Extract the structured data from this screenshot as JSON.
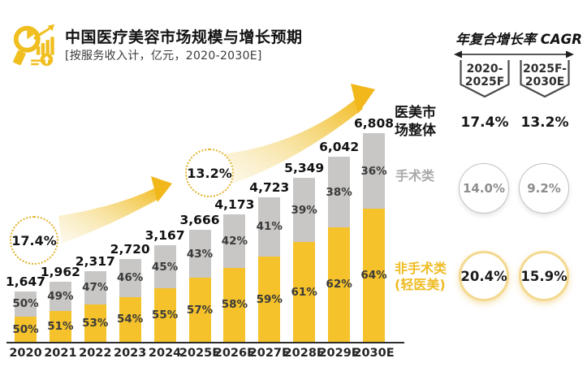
{
  "header": {
    "title": "中国医疗美容市场规模与增长预期",
    "subtitle": "[按服务收入计，亿元，2020-2030E]",
    "icon": "market-analysis-icon"
  },
  "colors": {
    "brand_gold": "#f0be1e",
    "bar_yellow": "#f5c22b",
    "bar_gray": "#c8c7c5",
    "text_dark": "#161616",
    "text_gray": "#a9a9a9"
  },
  "chart_data": {
    "type": "bar",
    "stacked": true,
    "title": "中国医疗美容市场规模与增长预期",
    "unit": "亿元",
    "categories": [
      "2020",
      "2021",
      "2022",
      "2023",
      "2024",
      "2025F",
      "2026E",
      "2027E",
      "2028E",
      "2029E",
      "2030E"
    ],
    "totals": [
      1647,
      1962,
      2317,
      2720,
      3167,
      3666,
      4173,
      4723,
      5349,
      6042,
      6808
    ],
    "totals_fmt": [
      "1,647",
      "1,962",
      "2,317",
      "2,720",
      "3,167",
      "3,666",
      "4,173",
      "4,723",
      "5,349",
      "6,042",
      "6,808"
    ],
    "series": [
      {
        "name": "非手术类(轻医美)",
        "color": "#f5c22b",
        "share_pct": [
          50,
          51,
          53,
          54,
          55,
          57,
          58,
          59,
          61,
          62,
          64
        ]
      },
      {
        "name": "手术类",
        "color": "#c8c7c5",
        "share_pct": [
          50,
          49,
          47,
          46,
          45,
          43,
          42,
          41,
          39,
          38,
          36
        ]
      }
    ],
    "annotations": [
      {
        "label": "17.4%",
        "meaning": "CAGR 2020-2025F"
      },
      {
        "label": "13.2%",
        "meaning": "CAGR 2025F-2030E"
      }
    ]
  },
  "legend": {
    "total": "医美市\n场整体",
    "surgical": "手术类",
    "nonsurgical": "非手术类\n(轻医美)"
  },
  "cagr_panel": {
    "title": "年复合增长率 CAGR",
    "periods": [
      {
        "line1": "2020-",
        "line2": "2025F"
      },
      {
        "line1": "2025F-",
        "line2": "2030E"
      }
    ],
    "rows": [
      {
        "name": "医美市场整体",
        "values": [
          "17.4%",
          "13.2%"
        ]
      },
      {
        "name": "手术类",
        "values": [
          "14.0%",
          "9.2%"
        ]
      },
      {
        "name": "非手术类(轻医美)",
        "values": [
          "20.4%",
          "15.9%"
        ]
      }
    ]
  }
}
